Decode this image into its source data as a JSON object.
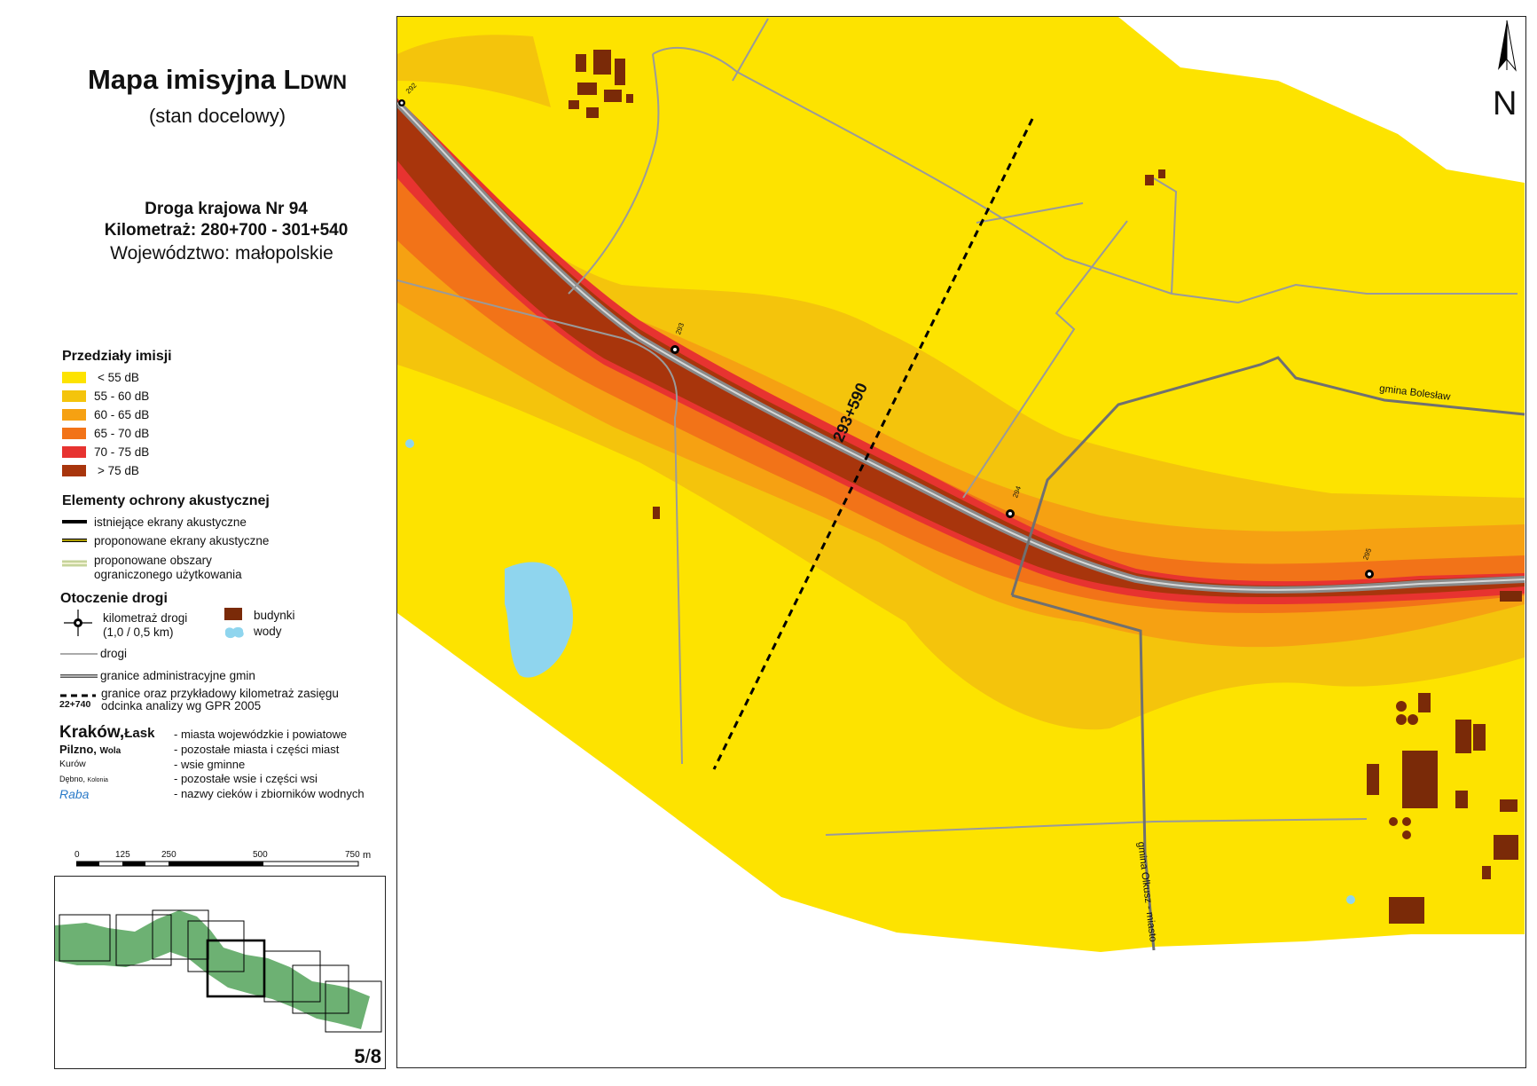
{
  "title": {
    "main": "Mapa imisyjna L",
    "sub": "DWN",
    "subtitle": "(stan docelowy)"
  },
  "road": {
    "line1": "Droga krajowa Nr 94",
    "line2": "Kilometraż: 280+700 - 301+540",
    "voivodeship": "Województwo: małopolskie"
  },
  "legend": {
    "ranges_title": "Przedziały imisji",
    "ranges": [
      {
        "label": "< 55 dB",
        "color": "#fde300"
      },
      {
        "label": "55 - 60 dB",
        "color": "#f4c40c"
      },
      {
        "label": "60 - 65 dB",
        "color": "#f6a112"
      },
      {
        "label": "65 - 70 dB",
        "color": "#f27318"
      },
      {
        "label": "70 - 75 dB",
        "color": "#e73330"
      },
      {
        "label": "> 75 dB",
        "color": "#a8350c"
      }
    ],
    "protection_title": "Elementy ochrony akustycznej",
    "protection": [
      {
        "label": "istniejące ekrany akustyczne"
      },
      {
        "label": "proponowane ekrany akustyczne"
      },
      {
        "label": "proponowane obszary",
        "label2": "ograniczonego użytkowania"
      }
    ],
    "surroundings_title": "Otoczenie drogi",
    "km_label": "kilometraż drogi",
    "km_label2": "(1,0 / 0,5 km)",
    "buildings_label": "budynki",
    "water_label": "wody",
    "roads_label": "drogi",
    "admin_label": "granice administracyjne gmin",
    "boundary_label": "granice oraz przykładowy kilometraż zasięgu",
    "boundary_label2": "odcinka analizy wg GPR 2005",
    "boundary_example": "22+740",
    "places": [
      {
        "sample": "Kraków,",
        "sample2": "Łask",
        "desc": "- miasta wojewódzkie i powiatowe"
      },
      {
        "sample": "Pilzno,",
        "sample2": "Wola",
        "desc": "- pozostałe miasta i części miast"
      },
      {
        "sample": "Kurów",
        "sample2": "",
        "desc": "- wsie gminne"
      },
      {
        "sample": "Dębno,",
        "sample2": "Kolonia",
        "desc": "- pozostałe wsie i części wsi"
      },
      {
        "sample": "Raba",
        "sample2": "",
        "desc": "- nazwy cieków i zbiorników wodnych"
      }
    ]
  },
  "scalebar": {
    "ticks": [
      "0",
      "125",
      "250",
      "500",
      "750"
    ],
    "unit": "m"
  },
  "sheet": {
    "current": "5",
    "total": "8"
  },
  "map": {
    "north": "N",
    "labels": {
      "boundary_km": "293+590",
      "gmina_boleslaw": "gmina Bolesław",
      "gmina_olkusz": "gmina Olkusz - miasto",
      "km_293": "293",
      "km_294": "294",
      "km_295": "295",
      "km_292": "292"
    }
  }
}
